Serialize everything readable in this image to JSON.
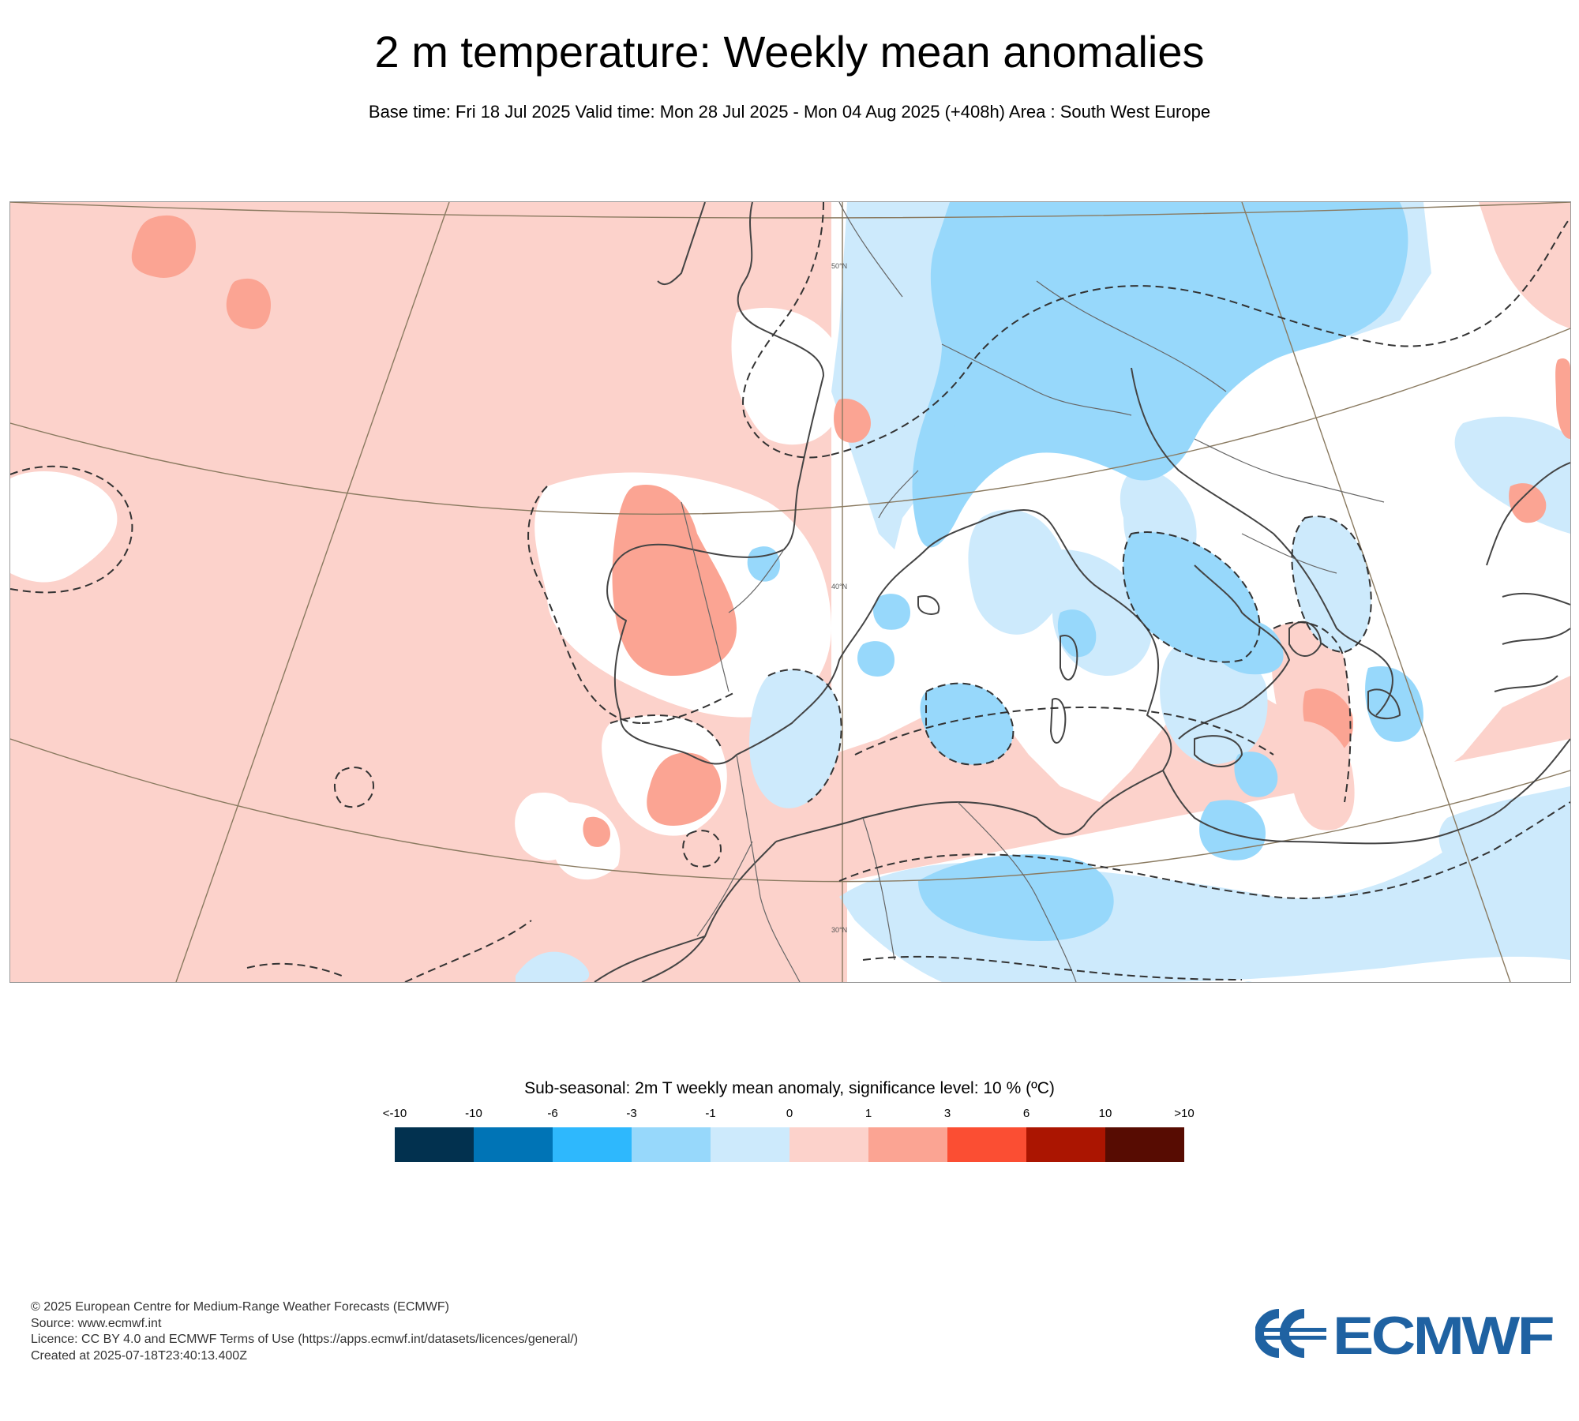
{
  "title": "2 m temperature: Weekly mean anomalies",
  "subtitle": "Base time: Fri 18 Jul 2025 Valid time: Mon 28 Jul 2025 - Mon 04 Aug 2025 (+408h) Area : South West Europe",
  "map": {
    "graticule_labels": {
      "lat50": "50°N",
      "lat40": "40°N",
      "lat30": "30°N"
    },
    "colors": {
      "land_water_base": "#fcd2cb",
      "warm_moderate": "#fba493",
      "neutral": "#ffffff",
      "cool_light": "#cdeafc",
      "cool_moderate": "#97d8fb",
      "coastline": "#444444",
      "graticule": "#8a7a60",
      "significance_contour": "#333333"
    }
  },
  "legend": {
    "title": "Sub-seasonal: 2m T weekly mean anomaly, significance level: 10 % (ºC)",
    "ticks": [
      "<-10",
      "-10",
      "-6",
      "-3",
      "-1",
      "0",
      "1",
      "3",
      "6",
      "10",
      ">10"
    ],
    "colors": [
      "#02314f",
      "#0074b6",
      "#2eb8fd",
      "#97d8fb",
      "#cdeafc",
      "#fcd2cb",
      "#fba493",
      "#fb4e33",
      "#ab1501",
      "#570c02"
    ]
  },
  "footer": {
    "line1": "© 2025 European Centre for Medium-Range Weather Forecasts (ECMWF)",
    "line2": "Source: www.ecmwf.int",
    "line3": "Licence: CC BY 4.0 and ECMWF Terms of Use (https://apps.ecmwf.int/datasets/licences/general/)",
    "line4": "Created at 2025-07-18T23:40:13.400Z"
  },
  "logo": {
    "text": "ECMWF",
    "color": "#1f62a2"
  }
}
